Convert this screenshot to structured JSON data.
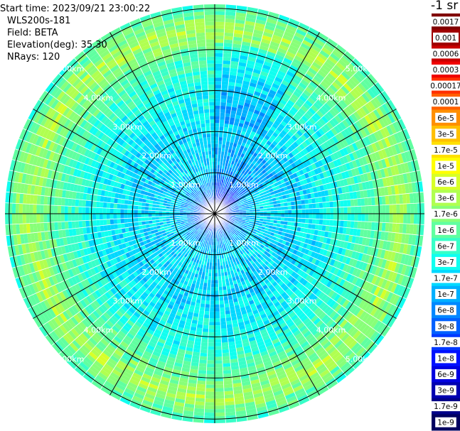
{
  "header": {
    "start_time": "Start time: 2023/09/21 23:00:22",
    "device": "WLS200s-181",
    "field": "Field: BETA",
    "elevation": "Elevation(deg): 35.30",
    "nrays": "NRays: 120"
  },
  "colorbar": {
    "title": "-1 sr",
    "labels": [
      "0.0017",
      "0.001",
      "0.0006",
      "0.0003",
      "0.00017",
      "0.0001",
      "6e-5",
      "3e-5",
      "1.7e-5",
      "1e-5",
      "6e-6",
      "3e-6",
      "1.7e-6",
      "1e-6",
      "6e-7",
      "3e-7",
      "1.7e-7",
      "1e-7",
      "6e-8",
      "3e-8",
      "1.7e-8",
      "1e-8",
      "6e-9",
      "3e-9",
      "1.7e-9",
      "1e-9"
    ],
    "colors": [
      "#800000",
      "#a00000",
      "#c80000",
      "#f00000",
      "#ff3000",
      "#ff6000",
      "#ff9000",
      "#ffc000",
      "#ffe000",
      "#ffff00",
      "#d8ff28",
      "#b0ff50",
      "#88ff78",
      "#60ffa0",
      "#38ffc8",
      "#10fff0",
      "#00d8ff",
      "#00b0ff",
      "#0088ff",
      "#0060ff",
      "#0038ff",
      "#0010ff",
      "#0000e0",
      "#0000b0",
      "#000088",
      "#000060"
    ]
  },
  "chart_data": {
    "type": "heatmap",
    "projection": "polar PPI",
    "rings_km": [
      1,
      2,
      3,
      4,
      5
    ],
    "ring_labels": [
      "1.00km",
      "2.00km",
      "3.00km",
      "4.00km",
      "5.00km"
    ],
    "spokes": 12,
    "rays": 120,
    "range_km": [
      0,
      5.1
    ],
    "field": "BETA",
    "colorbar_tick_labels": [
      "0.0017",
      "0.001",
      "0.0006",
      "0.0003",
      "0.00017",
      "0.0001",
      "6e-5",
      "3e-5",
      "1.7e-5",
      "1e-5",
      "6e-6",
      "3e-6",
      "1.7e-6",
      "1e-6",
      "6e-7",
      "3e-7",
      "1.7e-7",
      "1e-7",
      "6e-8",
      "3e-8",
      "1.7e-8",
      "1e-8",
      "6e-9",
      "3e-9",
      "1.7e-9",
      "1e-9"
    ],
    "range_profile_colorbar_index": [
      {
        "range_km": 0.1,
        "index": 23
      },
      {
        "range_km": 0.5,
        "index": 18
      },
      {
        "range_km": 1.0,
        "index": 16
      },
      {
        "range_km": 2.0,
        "index": 16
      },
      {
        "range_km": 3.0,
        "index": 15
      },
      {
        "range_km": 4.0,
        "index": 13
      },
      {
        "range_km": 4.5,
        "index": 11
      },
      {
        "range_km": 5.1,
        "index": 14
      }
    ]
  }
}
